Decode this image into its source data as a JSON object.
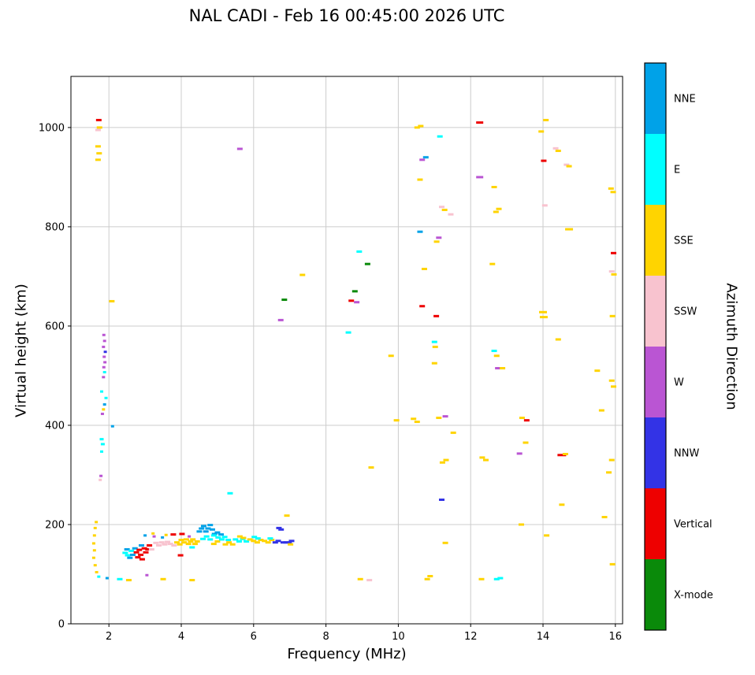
{
  "title": "NAL CADI - Feb 16 00:45:00 2026 UTC",
  "chart_data": {
    "type": "scatter",
    "title": "NAL CADI - Feb 16 00:45:00 2026 UTC",
    "xlabel": "Frequency (MHz)",
    "ylabel": "Virtual height (km)",
    "colorbar_label": "Azimuth Direction",
    "xlim": [
      0.95,
      16.2
    ],
    "ylim": [
      0,
      1103
    ],
    "xticks": [
      2,
      4,
      6,
      8,
      10,
      12,
      14,
      16
    ],
    "yticks": [
      0,
      200,
      400,
      600,
      800,
      1000
    ],
    "grid": true,
    "grid_color": "#cccccc",
    "legend_position": "right-colorbar",
    "categories": [
      {
        "label": "NNE",
        "color": "#00A2E8"
      },
      {
        "label": "E",
        "color": "#00FFFF"
      },
      {
        "label": "SSE",
        "color": "#FFD400"
      },
      {
        "label": "SSW",
        "color": "#F8C3CF"
      },
      {
        "label": "W",
        "color": "#BA55D3"
      },
      {
        "label": "NNW",
        "color": "#3333E6"
      },
      {
        "label": "Vertical",
        "color": "#EE0000"
      },
      {
        "label": "X-mode",
        "color": "#0A8A0A"
      }
    ],
    "points": [
      [
        1.72,
        1015,
        "Vertical"
      ],
      [
        1.74,
        1000,
        "SSE"
      ],
      [
        1.7,
        995,
        "SSW"
      ],
      [
        1.7,
        962,
        "SSE"
      ],
      [
        1.73,
        948,
        "SSE"
      ],
      [
        1.7,
        935,
        "SSE"
      ],
      [
        2.08,
        650,
        "SSE"
      ],
      [
        1.86,
        582,
        "W",
        4
      ],
      [
        1.88,
        570,
        "W",
        4
      ],
      [
        1.85,
        558,
        "W",
        4
      ],
      [
        1.9,
        548,
        "NNW",
        4
      ],
      [
        1.87,
        538,
        "W",
        4
      ],
      [
        1.89,
        527,
        "W",
        4
      ],
      [
        1.86,
        517,
        "W",
        4
      ],
      [
        1.88,
        507,
        "E",
        4
      ],
      [
        1.85,
        497,
        "W",
        4
      ],
      [
        1.8,
        468,
        "E",
        4
      ],
      [
        1.92,
        455,
        "E",
        4
      ],
      [
        1.88,
        442,
        "NNE",
        4
      ],
      [
        1.85,
        432,
        "SSE",
        4
      ],
      [
        1.82,
        423,
        "W",
        4
      ],
      [
        2.1,
        398,
        "NNE",
        4
      ],
      [
        1.8,
        372,
        "E",
        5
      ],
      [
        1.83,
        362,
        "E",
        5
      ],
      [
        1.8,
        347,
        "E",
        4
      ],
      [
        1.78,
        298,
        "W",
        4
      ],
      [
        1.76,
        290,
        "SSW",
        4
      ],
      [
        1.65,
        205,
        "SSE",
        4
      ],
      [
        1.62,
        193,
        "SSE",
        4
      ],
      [
        1.6,
        178,
        "SSE",
        4
      ],
      [
        1.58,
        162,
        "SSE",
        4
      ],
      [
        1.6,
        148,
        "SSE",
        4
      ],
      [
        1.58,
        133,
        "SSE",
        4
      ],
      [
        1.62,
        118,
        "SSE",
        4
      ],
      [
        1.66,
        104,
        "SSE",
        4
      ],
      [
        1.72,
        95,
        "E",
        4
      ],
      [
        1.95,
        92,
        "NNE",
        4
      ],
      [
        2.3,
        90,
        "E"
      ],
      [
        2.55,
        88,
        "SSE"
      ],
      [
        3.05,
        98,
        "W",
        4
      ],
      [
        3.5,
        90,
        "SSE"
      ],
      [
        4.3,
        88,
        "SSE"
      ],
      [
        2.45,
        143,
        "E"
      ],
      [
        2.52,
        138,
        "E"
      ],
      [
        2.5,
        150,
        "NNE"
      ],
      [
        2.58,
        133,
        "NNE"
      ],
      [
        2.62,
        147,
        "E"
      ],
      [
        2.66,
        139,
        "NNE"
      ],
      [
        2.72,
        152,
        "NNE"
      ],
      [
        2.76,
        144,
        "Vertical"
      ],
      [
        2.8,
        134,
        "Vertical"
      ],
      [
        2.84,
        149,
        "Vertical"
      ],
      [
        2.88,
        139,
        "Vertical"
      ],
      [
        2.92,
        130,
        "Vertical"
      ],
      [
        2.9,
        158,
        "NNE"
      ],
      [
        2.98,
        152,
        "Vertical"
      ],
      [
        3.02,
        144,
        "Vertical"
      ],
      [
        3.0,
        178,
        "NNE",
        4
      ],
      [
        3.08,
        150,
        "Vertical"
      ],
      [
        3.12,
        158,
        "Vertical"
      ],
      [
        3.18,
        150,
        "SSW"
      ],
      [
        3.22,
        182,
        "SSE",
        4
      ],
      [
        3.25,
        176,
        "W",
        4
      ],
      [
        3.3,
        163,
        "SSW"
      ],
      [
        3.38,
        158,
        "SSW"
      ],
      [
        3.46,
        164,
        "SSW"
      ],
      [
        3.54,
        160,
        "SSW"
      ],
      [
        3.48,
        174,
        "NNE",
        4
      ],
      [
        3.58,
        179,
        "SSE",
        4
      ],
      [
        3.62,
        165,
        "SSW"
      ],
      [
        3.7,
        161,
        "SSW"
      ],
      [
        3.78,
        180,
        "Vertical"
      ],
      [
        3.8,
        158,
        "SSW"
      ],
      [
        3.88,
        164,
        "SSE"
      ],
      [
        3.96,
        160,
        "SSE"
      ],
      [
        4.0,
        169,
        "SSE"
      ],
      [
        4.02,
        181,
        "Vertical"
      ],
      [
        3.98,
        138,
        "Vertical"
      ],
      [
        4.08,
        164,
        "SSE"
      ],
      [
        4.14,
        170,
        "SSE"
      ],
      [
        4.2,
        161,
        "SSE"
      ],
      [
        4.26,
        166,
        "SSE"
      ],
      [
        4.32,
        170,
        "SSE"
      ],
      [
        4.22,
        176,
        "W",
        4
      ],
      [
        4.3,
        154,
        "E"
      ],
      [
        4.38,
        161,
        "SSE"
      ],
      [
        4.44,
        166,
        "SSE"
      ],
      [
        4.5,
        186,
        "NNE"
      ],
      [
        4.56,
        192,
        "NNE"
      ],
      [
        4.62,
        197,
        "NNE"
      ],
      [
        4.68,
        186,
        "NNE"
      ],
      [
        4.74,
        192,
        "NNE"
      ],
      [
        4.8,
        199,
        "NNE"
      ],
      [
        4.86,
        190,
        "NNE"
      ],
      [
        4.92,
        181,
        "NNE"
      ],
      [
        4.6,
        171,
        "E"
      ],
      [
        4.7,
        176,
        "E"
      ],
      [
        4.8,
        170,
        "E"
      ],
      [
        4.9,
        178,
        "E"
      ],
      [
        5.0,
        184,
        "NNE"
      ],
      [
        5.02,
        174,
        "E"
      ],
      [
        4.9,
        161,
        "SSE"
      ],
      [
        5.0,
        166,
        "SSE"
      ],
      [
        5.1,
        180,
        "NNE"
      ],
      [
        5.12,
        170,
        "E"
      ],
      [
        5.2,
        175,
        "E"
      ],
      [
        5.3,
        169,
        "E"
      ],
      [
        5.22,
        160,
        "SSE"
      ],
      [
        5.32,
        164,
        "SSE"
      ],
      [
        5.42,
        160,
        "SSE"
      ],
      [
        5.35,
        263,
        "E"
      ],
      [
        5.62,
        957,
        "W"
      ],
      [
        5.5,
        170,
        "E"
      ],
      [
        5.6,
        166,
        "E"
      ],
      [
        5.7,
        171,
        "E"
      ],
      [
        5.8,
        166,
        "E"
      ],
      [
        5.62,
        176,
        "SSE"
      ],
      [
        5.72,
        173,
        "SSE"
      ],
      [
        5.9,
        170,
        "SSE"
      ],
      [
        6.0,
        167,
        "SSE"
      ],
      [
        6.1,
        164,
        "SSE"
      ],
      [
        6.2,
        169,
        "SSE"
      ],
      [
        6.02,
        175,
        "E"
      ],
      [
        6.12,
        172,
        "E"
      ],
      [
        6.3,
        167,
        "SSE"
      ],
      [
        6.4,
        164,
        "SSE"
      ],
      [
        6.5,
        169,
        "SSE"
      ],
      [
        6.46,
        172,
        "E"
      ],
      [
        6.6,
        164,
        "NNW"
      ],
      [
        6.68,
        167,
        "NNW"
      ],
      [
        6.7,
        193,
        "NNW"
      ],
      [
        6.76,
        190,
        "NNW"
      ],
      [
        6.82,
        164,
        "NNW"
      ],
      [
        6.9,
        164,
        "NNW"
      ],
      [
        6.98,
        164,
        "NNW"
      ],
      [
        7.05,
        167,
        "NNW"
      ],
      [
        6.92,
        218,
        "SSE"
      ],
      [
        7.02,
        160,
        "SSE"
      ],
      [
        6.75,
        612,
        "W"
      ],
      [
        6.85,
        653,
        "X-mode"
      ],
      [
        7.35,
        703,
        "SSE"
      ],
      [
        8.62,
        587,
        "E"
      ],
      [
        8.7,
        651,
        "Vertical"
      ],
      [
        8.85,
        648,
        "W"
      ],
      [
        8.8,
        670,
        "X-mode"
      ],
      [
        8.92,
        750,
        "E"
      ],
      [
        9.15,
        725,
        "X-mode"
      ],
      [
        8.95,
        90,
        "SSE"
      ],
      [
        9.2,
        88,
        "SSW"
      ],
      [
        9.25,
        315,
        "SSE"
      ],
      [
        9.8,
        540,
        "SSE"
      ],
      [
        9.95,
        410,
        "SSE"
      ],
      [
        10.42,
        413,
        "SSE"
      ],
      [
        10.52,
        407,
        "SSE"
      ],
      [
        10.52,
        1000,
        "SSE"
      ],
      [
        10.62,
        1003,
        "SSE"
      ],
      [
        10.6,
        895,
        "SSE"
      ],
      [
        10.6,
        790,
        "NNE"
      ],
      [
        10.66,
        640,
        "Vertical"
      ],
      [
        10.66,
        935,
        "W"
      ],
      [
        10.76,
        940,
        "NNE"
      ],
      [
        10.72,
        715,
        "SSE"
      ],
      [
        10.8,
        90,
        "SSE"
      ],
      [
        10.88,
        96,
        "SSE"
      ],
      [
        11.0,
        568,
        "E"
      ],
      [
        11.02,
        558,
        "SSE"
      ],
      [
        11.0,
        525,
        "SSE"
      ],
      [
        11.05,
        620,
        "Vertical"
      ],
      [
        11.06,
        770,
        "SSE"
      ],
      [
        11.12,
        778,
        "W"
      ],
      [
        11.15,
        982,
        "E"
      ],
      [
        11.12,
        415,
        "SSE"
      ],
      [
        11.3,
        418,
        "W"
      ],
      [
        11.2,
        840,
        "SSW"
      ],
      [
        11.28,
        834,
        "SSE"
      ],
      [
        11.22,
        325,
        "SSE"
      ],
      [
        11.32,
        330,
        "SSE"
      ],
      [
        11.3,
        163,
        "SSE"
      ],
      [
        11.45,
        825,
        "SSW"
      ],
      [
        11.52,
        385,
        "SSE"
      ],
      [
        11.2,
        250,
        "NNW"
      ],
      [
        12.25,
        1010,
        "Vertical",
        9
      ],
      [
        12.25,
        900,
        "W",
        9
      ],
      [
        12.32,
        335,
        "SSE"
      ],
      [
        12.42,
        330,
        "SSE"
      ],
      [
        12.6,
        725,
        "SSE"
      ],
      [
        12.65,
        880,
        "SSE"
      ],
      [
        12.7,
        830,
        "SSE"
      ],
      [
        12.78,
        836,
        "SSE"
      ],
      [
        12.65,
        550,
        "E"
      ],
      [
        12.72,
        540,
        "SSE"
      ],
      [
        12.75,
        515,
        "W"
      ],
      [
        12.88,
        515,
        "SSE"
      ],
      [
        12.3,
        90,
        "SSE"
      ],
      [
        12.72,
        90,
        "E"
      ],
      [
        12.82,
        92,
        "E"
      ],
      [
        13.4,
        200,
        "SSE"
      ],
      [
        13.35,
        343,
        "W"
      ],
      [
        13.55,
        410,
        "Vertical"
      ],
      [
        13.42,
        415,
        "SSE"
      ],
      [
        13.52,
        365,
        "SSE"
      ],
      [
        13.95,
        992,
        "SSE"
      ],
      [
        14.02,
        933,
        "Vertical"
      ],
      [
        14.08,
        1015,
        "SSE"
      ],
      [
        14.05,
        843,
        "SSW"
      ],
      [
        14.0,
        628,
        "SSE",
        10
      ],
      [
        14.02,
        618,
        "SSE",
        10
      ],
      [
        14.1,
        178,
        "SSE"
      ],
      [
        14.35,
        958,
        "SSW"
      ],
      [
        14.42,
        953,
        "SSE"
      ],
      [
        14.42,
        573,
        "SSE"
      ],
      [
        14.52,
        340,
        "Vertical",
        11
      ],
      [
        14.62,
        342,
        "SSE"
      ],
      [
        14.52,
        240,
        "SSE"
      ],
      [
        14.65,
        925,
        "SSW"
      ],
      [
        14.72,
        922,
        "SSE"
      ],
      [
        14.72,
        795,
        "SSE",
        10
      ],
      [
        15.5,
        510,
        "SSE"
      ],
      [
        15.62,
        430,
        "SSE"
      ],
      [
        15.7,
        215,
        "SSE"
      ],
      [
        15.82,
        305,
        "SSE"
      ],
      [
        15.9,
        330,
        "SSE"
      ],
      [
        15.88,
        877,
        "SSE"
      ],
      [
        15.94,
        870,
        "SSE"
      ],
      [
        15.95,
        747,
        "Vertical"
      ],
      [
        15.9,
        710,
        "SSW"
      ],
      [
        15.96,
        704,
        "SSE"
      ],
      [
        15.92,
        620,
        "SSE"
      ],
      [
        15.9,
        490,
        "SSE"
      ],
      [
        15.95,
        478,
        "SSE"
      ],
      [
        15.92,
        120,
        "SSE"
      ]
    ]
  }
}
